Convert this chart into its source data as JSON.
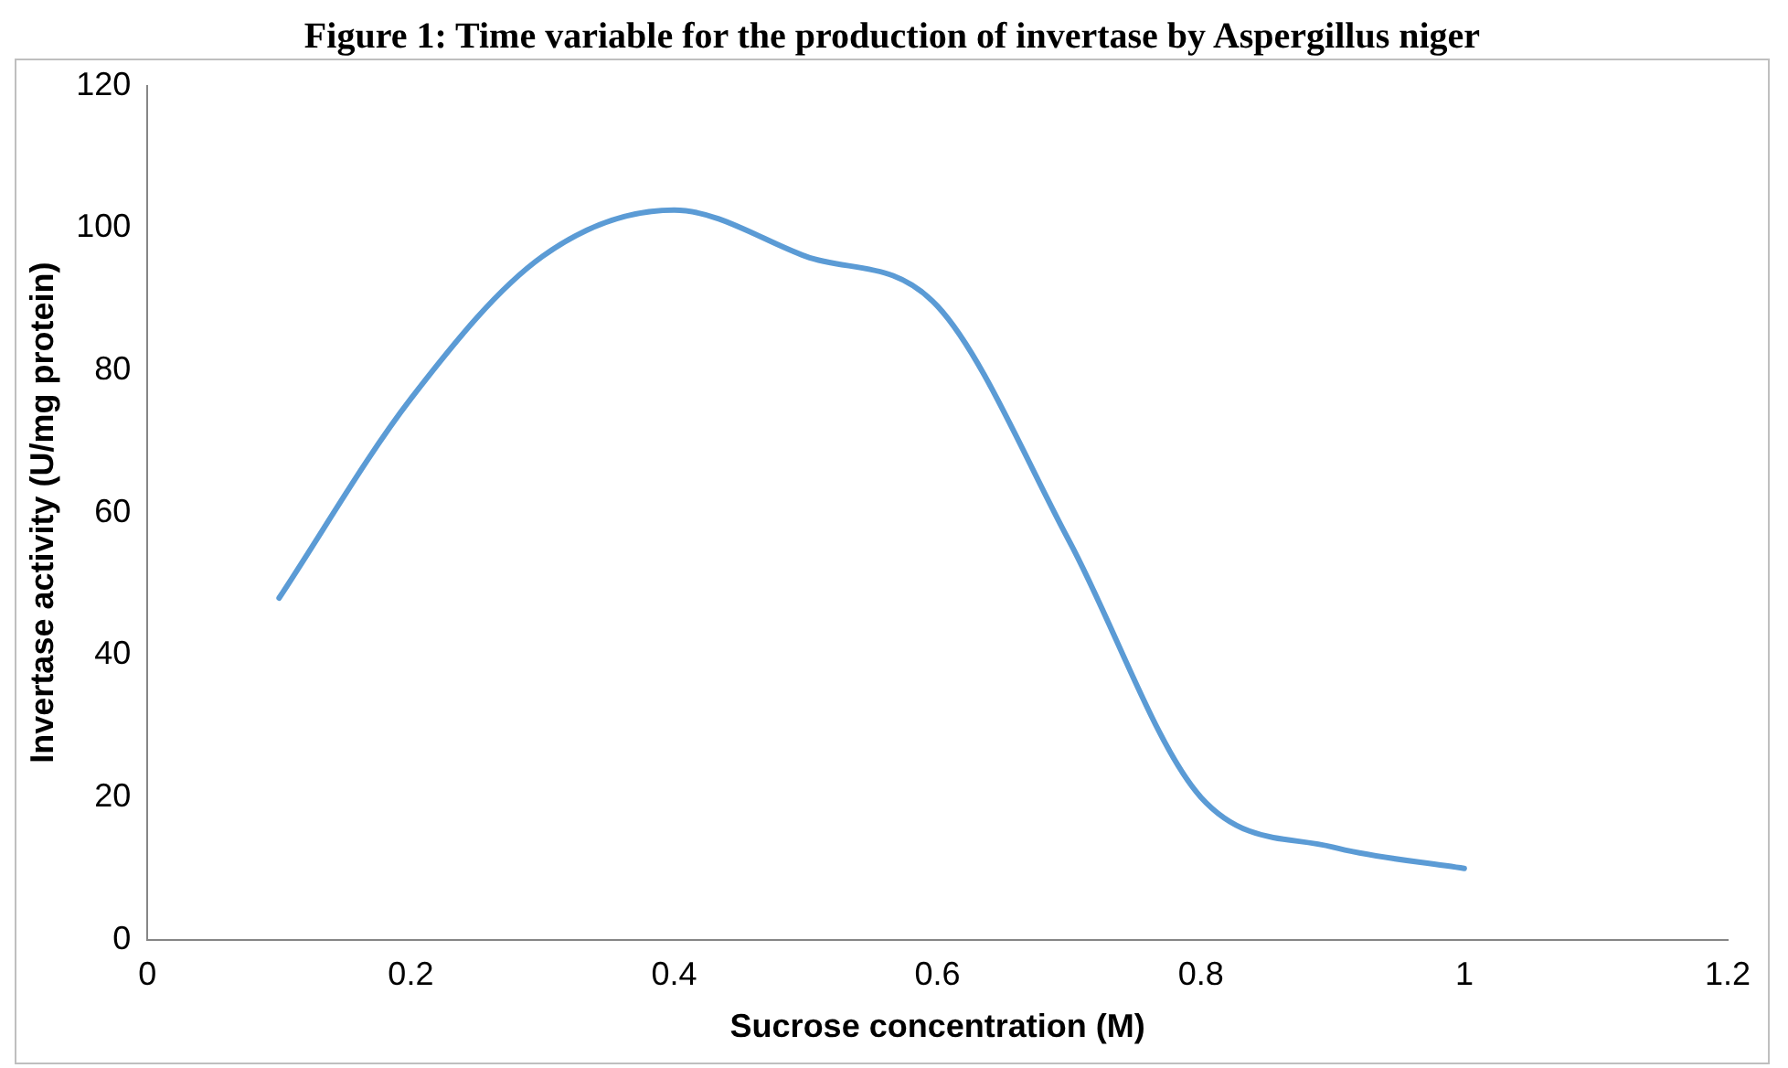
{
  "chart_data": {
    "type": "line",
    "title": "Figure 1: Time variable for the production of invertase by Aspergillus niger",
    "xlabel": "Sucrose concentration (M)",
    "ylabel": "Invertase activity (U/mg protein)",
    "x": [
      0.1,
      0.2,
      0.3,
      0.4,
      0.5,
      0.6,
      0.7,
      0.8,
      0.9,
      1.0
    ],
    "series": [
      {
        "color": "#5b9bd5",
        "values": [
          48,
          76,
          96,
          102.5,
          96,
          89,
          56,
          20,
          13,
          10
        ]
      }
    ],
    "xlim": [
      0,
      1.2
    ],
    "xticks": [
      0,
      0.2,
      0.4,
      0.6,
      0.8,
      1,
      1.2
    ],
    "ylim": [
      0,
      120
    ],
    "yticks": [
      0,
      20,
      40,
      60,
      80,
      100,
      120
    ],
    "grid": false,
    "legend": false,
    "marker": "none",
    "line_style": "solid"
  }
}
